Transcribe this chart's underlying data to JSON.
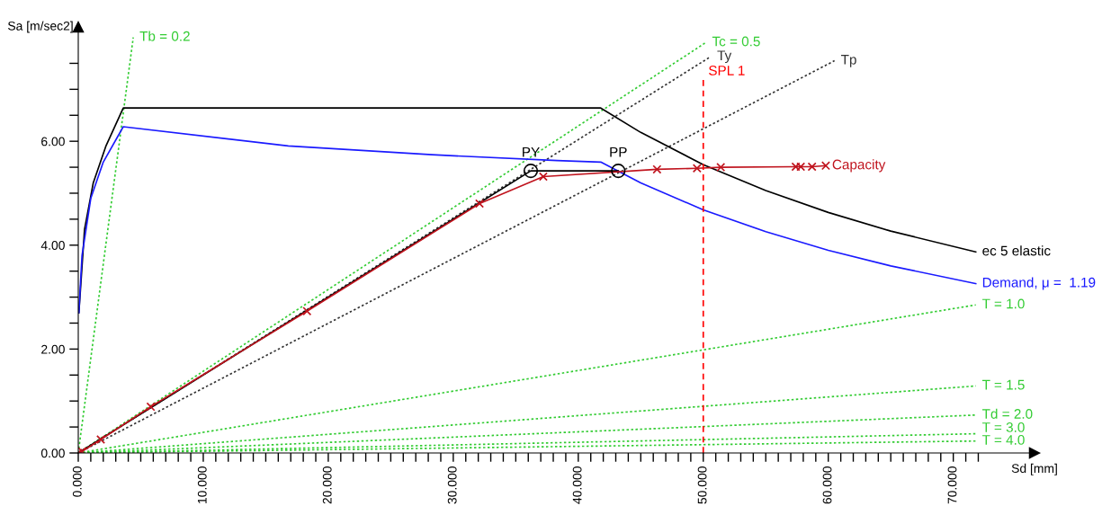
{
  "chart_data": {
    "type": "line",
    "xlabel": "Sd [mm]",
    "ylabel": "Sa [m/sec2]",
    "xlim": [
      0,
      76.5
    ],
    "ylim": [
      0,
      8.2
    ],
    "xticks": [
      {
        "value": 0,
        "label": "0.000"
      },
      {
        "value": 1,
        "label": null
      },
      {
        "value": 2,
        "label": null
      },
      {
        "value": 3,
        "label": null
      },
      {
        "value": 4,
        "label": null
      },
      {
        "value": 5,
        "label": null
      },
      {
        "value": 6,
        "label": null
      },
      {
        "value": 7,
        "label": null
      },
      {
        "value": 8,
        "label": null
      },
      {
        "value": 9,
        "label": null
      },
      {
        "value": 10,
        "label": "10.000"
      },
      {
        "value": 11,
        "label": null
      },
      {
        "value": 12,
        "label": null
      },
      {
        "value": 13,
        "label": null
      },
      {
        "value": 14,
        "label": null
      },
      {
        "value": 15,
        "label": null
      },
      {
        "value": 16,
        "label": null
      },
      {
        "value": 17,
        "label": null
      },
      {
        "value": 18,
        "label": null
      },
      {
        "value": 19,
        "label": null
      },
      {
        "value": 20,
        "label": "20.000"
      },
      {
        "value": 21,
        "label": null
      },
      {
        "value": 22,
        "label": null
      },
      {
        "value": 23,
        "label": null
      },
      {
        "value": 24,
        "label": null
      },
      {
        "value": 25,
        "label": null
      },
      {
        "value": 26,
        "label": null
      },
      {
        "value": 27,
        "label": null
      },
      {
        "value": 28,
        "label": null
      },
      {
        "value": 29,
        "label": null
      },
      {
        "value": 30,
        "label": "30.000"
      },
      {
        "value": 31,
        "label": null
      },
      {
        "value": 32,
        "label": null
      },
      {
        "value": 33,
        "label": null
      },
      {
        "value": 34,
        "label": null
      },
      {
        "value": 35,
        "label": null
      },
      {
        "value": 36,
        "label": null
      },
      {
        "value": 37,
        "label": null
      },
      {
        "value": 38,
        "label": null
      },
      {
        "value": 39,
        "label": null
      },
      {
        "value": 40,
        "label": "40.000"
      },
      {
        "value": 41,
        "label": null
      },
      {
        "value": 42,
        "label": null
      },
      {
        "value": 43,
        "label": null
      },
      {
        "value": 44,
        "label": null
      },
      {
        "value": 45,
        "label": null
      },
      {
        "value": 46,
        "label": null
      },
      {
        "value": 47,
        "label": null
      },
      {
        "value": 48,
        "label": null
      },
      {
        "value": 49,
        "label": null
      },
      {
        "value": 50,
        "label": "50.000"
      },
      {
        "value": 51,
        "label": null
      },
      {
        "value": 52,
        "label": null
      },
      {
        "value": 53,
        "label": null
      },
      {
        "value": 54,
        "label": null
      },
      {
        "value": 55,
        "label": null
      },
      {
        "value": 56,
        "label": null
      },
      {
        "value": 57,
        "label": null
      },
      {
        "value": 58,
        "label": null
      },
      {
        "value": 59,
        "label": null
      },
      {
        "value": 60,
        "label": "60.000"
      },
      {
        "value": 61,
        "label": null
      },
      {
        "value": 62,
        "label": null
      },
      {
        "value": 63,
        "label": null
      },
      {
        "value": 64,
        "label": null
      },
      {
        "value": 65,
        "label": null
      },
      {
        "value": 66,
        "label": null
      },
      {
        "value": 67,
        "label": null
      },
      {
        "value": 68,
        "label": null
      },
      {
        "value": 69,
        "label": null
      },
      {
        "value": 70,
        "label": "70.000"
      },
      {
        "value": 71,
        "label": null
      },
      {
        "value": 72,
        "label": null
      }
    ],
    "yticks": [
      {
        "value": 0,
        "label": "0.00"
      },
      {
        "value": 0.5,
        "label": null
      },
      {
        "value": 1,
        "label": null
      },
      {
        "value": 1.5,
        "label": null
      },
      {
        "value": 2,
        "label": "2.00"
      },
      {
        "value": 2.5,
        "label": null
      },
      {
        "value": 3,
        "label": null
      },
      {
        "value": 3.5,
        "label": null
      },
      {
        "value": 4,
        "label": "4.00"
      },
      {
        "value": 4.5,
        "label": null
      },
      {
        "value": 5,
        "label": null
      },
      {
        "value": 5.5,
        "label": null
      },
      {
        "value": 6,
        "label": "6.00"
      },
      {
        "value": 6.5,
        "label": null
      },
      {
        "value": 7,
        "label": null
      },
      {
        "value": 7.5,
        "label": null
      }
    ],
    "grid": false,
    "legend": false,
    "series": [
      {
        "name": "Tb = 0.2",
        "type": "line",
        "color": "#33cc33",
        "line_style": "dotted",
        "x": [
          0,
          4.4
        ],
        "values": [
          0,
          8.0
        ]
      },
      {
        "name": "Tc = 0.5",
        "type": "line",
        "color": "#33cc33",
        "line_style": "dotted",
        "x": [
          0,
          50.2
        ],
        "values": [
          0,
          7.9
        ]
      },
      {
        "name": "Ty",
        "type": "line",
        "color": "#333333",
        "line_style": "dotted",
        "x": [
          0,
          50.6
        ],
        "values": [
          0,
          7.63
        ]
      },
      {
        "name": "Tp",
        "type": "line",
        "color": "#333333",
        "line_style": "dotted",
        "x": [
          0,
          60.5
        ],
        "values": [
          0,
          7.55
        ]
      },
      {
        "name": "T = 1.0",
        "type": "line",
        "color": "#33cc33",
        "line_style": "dotted",
        "x": [
          0,
          71.8
        ],
        "values": [
          0,
          2.85
        ]
      },
      {
        "name": "T = 1.5",
        "type": "line",
        "color": "#33cc33",
        "line_style": "dotted",
        "x": [
          0,
          71.8
        ],
        "values": [
          0,
          1.29
        ]
      },
      {
        "name": "Td = 2.0",
        "type": "line",
        "color": "#33cc33",
        "line_style": "dotted",
        "x": [
          0,
          71.8
        ],
        "values": [
          0,
          0.73
        ]
      },
      {
        "name": "T = 3.0",
        "type": "line",
        "color": "#33cc33",
        "line_style": "dotted",
        "x": [
          0,
          71.8
        ],
        "values": [
          0,
          0.37
        ]
      },
      {
        "name": "T = 4.0",
        "type": "line",
        "color": "#33cc33",
        "line_style": "dotted",
        "x": [
          0,
          71.8
        ],
        "values": [
          0,
          0.23
        ]
      },
      {
        "name": "ec 5 elastic",
        "type": "line",
        "color": "#000000",
        "line_style": "solid",
        "x": [
          0.05,
          0.5,
          1.2,
          2.2,
          3.6,
          41.8,
          45,
          50,
          55,
          60,
          65,
          71.8
        ],
        "values": [
          2.7,
          4.3,
          5.2,
          5.9,
          6.64,
          6.64,
          6.17,
          5.55,
          5.05,
          4.63,
          4.27,
          3.87
        ]
      },
      {
        "name": "Demand, μ =  1.19",
        "type": "line",
        "color": "#1a1aff",
        "line_style": "solid",
        "x": [
          0.05,
          0.3,
          1,
          2,
          3.6,
          16.8,
          28.3,
          38.3,
          41.8,
          45,
          50,
          55,
          60,
          65,
          71.8
        ],
        "values": [
          2.7,
          3.8,
          4.9,
          5.6,
          6.28,
          5.91,
          5.74,
          5.63,
          5.6,
          5.2,
          4.68,
          4.26,
          3.9,
          3.6,
          3.26
        ]
      },
      {
        "type": "line",
        "color": "#000000",
        "line_style": "solid",
        "x": [
          0,
          36.2,
          43.2
        ],
        "values": [
          0,
          5.43,
          5.43
        ]
      },
      {
        "type": "scatter",
        "color": "#000000",
        "marker": "circle",
        "x": [
          36.2,
          43.2
        ],
        "values": [
          5.43,
          5.43
        ]
      },
      {
        "name": "Capacity",
        "type": "line",
        "color": "#c0141e",
        "line_style": "solid",
        "marker": "cross",
        "x": [
          0,
          0.3,
          1.8,
          5.8,
          18.3,
          32.1,
          37.2,
          46.3,
          49.5,
          51.4,
          57.4,
          57.8,
          58.7,
          59.8
        ],
        "values": [
          0,
          0.03,
          0.26,
          0.89,
          2.73,
          4.8,
          5.32,
          5.46,
          5.48,
          5.5,
          5.51,
          5.51,
          5.51,
          5.53
        ]
      }
    ],
    "ref_lines": [
      {
        "axis": "x",
        "value": 50,
        "label": "SPL 1",
        "color": "#ff0000",
        "line_style": "dashed"
      }
    ],
    "annotations": [
      {
        "text": "PY",
        "x": 36.2,
        "y": 5.43
      },
      {
        "text": "PP",
        "x": 43.2,
        "y": 5.43
      }
    ]
  }
}
